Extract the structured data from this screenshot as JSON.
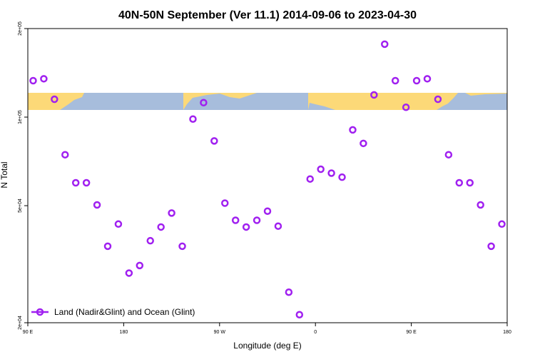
{
  "chart_data": {
    "type": "scatter",
    "title": "40N-50N September (Ver 11.1)   2014-09-06 to 2023-04-30",
    "xlabel": "Longitude (deg E)",
    "ylabel": "N Total",
    "x_domain": [
      90,
      540
    ],
    "y_scale": "log",
    "ylim": [
      20000,
      200000
    ],
    "x_ticks": [
      {
        "value": 90,
        "label": "90 E"
      },
      {
        "value": 180,
        "label": "180"
      },
      {
        "value": 270,
        "label": "90 W"
      },
      {
        "value": 360,
        "label": "0"
      },
      {
        "value": 450,
        "label": "90 E"
      },
      {
        "value": 540,
        "label": "180"
      }
    ],
    "y_ticks": [
      {
        "value": 20000,
        "label": "2e+04"
      },
      {
        "value": 50000,
        "label": "5e+04"
      },
      {
        "value": 100000,
        "label": "1e+05"
      },
      {
        "value": 200000,
        "label": "2e+05"
      }
    ],
    "map_band": {
      "ocean_color": "#a7bddc",
      "land_color": "#fcd978"
    },
    "legend": {
      "position": "bottom-left",
      "label": "Land (Nadir&Glint) and Ocean (Glint)"
    },
    "series": [
      {
        "name": "Land (Nadir&Glint) and Ocean (Glint)",
        "color": "#a020f0",
        "x": [
          95,
          105,
          115,
          125,
          135,
          145,
          155,
          165,
          175,
          185,
          195,
          205,
          215,
          225,
          235,
          245,
          255,
          265,
          275,
          285,
          295,
          305,
          315,
          325,
          335,
          345,
          355,
          365,
          375,
          385,
          395,
          405,
          415,
          425,
          435,
          445,
          455,
          465,
          475,
          485,
          495,
          505,
          515,
          525,
          535
        ],
        "y": [
          133000,
          135000,
          115000,
          74500,
          59800,
          59800,
          50300,
          36400,
          43300,
          29500,
          31300,
          38000,
          42300,
          47200,
          36400,
          98500,
          112000,
          83000,
          51000,
          44600,
          42300,
          44600,
          47900,
          42600,
          25400,
          21300,
          61600,
          66500,
          64500,
          62500,
          90500,
          81400,
          119000,
          177000,
          133000,
          108000,
          133000,
          135000,
          115000,
          74500,
          59800,
          59800,
          50300,
          36400,
          43300
        ]
      }
    ]
  }
}
